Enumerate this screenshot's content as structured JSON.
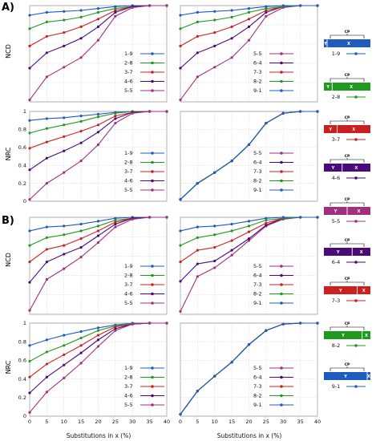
{
  "labels": {
    "panel_a": "A)",
    "panel_b": "B)",
    "ncd": "NCD",
    "nrc": "NRC",
    "xlabel": "Substitutions in x (%)",
    "cp": "CP",
    "x": "X",
    "y": "Y"
  },
  "colors": {
    "1-9": "#1f5bbf",
    "2-8": "#1f9a1f",
    "3-7": "#cc2020",
    "4-6": "#4a0a78",
    "5-5": "#a0307e",
    "6-4": "#4a0a78",
    "7-3": "#cc2020",
    "8-2": "#1f9a1f",
    "9-1": "#1f5bbf"
  },
  "legend_left": [
    "1-9",
    "2-8",
    "3-7",
    "4-6",
    "5-5"
  ],
  "legend_right": [
    "5-5",
    "6-4",
    "7-3",
    "8-2",
    "9-1"
  ],
  "chart_data": [
    {
      "type": "line",
      "panel": "A",
      "metric": "NCD",
      "position": "left",
      "x": [
        0,
        5,
        10,
        15,
        20,
        25,
        30,
        35,
        40
      ],
      "ylabel": "NCD",
      "ylim": [
        0,
        1
      ],
      "yticks": [],
      "series": [
        {
          "name": "1-9",
          "values": [
            0.9,
            0.93,
            0.94,
            0.95,
            0.97,
            0.99,
            1.0,
            1.0,
            1.0
          ]
        },
        {
          "name": "2-8",
          "values": [
            0.76,
            0.83,
            0.85,
            0.88,
            0.93,
            0.97,
            0.99,
            1.0,
            1.0
          ]
        },
        {
          "name": "3-7",
          "values": [
            0.58,
            0.68,
            0.72,
            0.78,
            0.86,
            0.95,
            0.99,
            1.0,
            1.0
          ]
        },
        {
          "name": "4-6",
          "values": [
            0.35,
            0.51,
            0.58,
            0.66,
            0.78,
            0.93,
            0.99,
            1.0,
            1.0
          ]
        },
        {
          "name": "5-5",
          "values": [
            0.02,
            0.26,
            0.36,
            0.46,
            0.64,
            0.89,
            0.98,
            1.0,
            1.0
          ]
        }
      ]
    },
    {
      "type": "line",
      "panel": "A",
      "metric": "NCD",
      "position": "right",
      "x": [
        0,
        5,
        10,
        15,
        20,
        25,
        30,
        35,
        40
      ],
      "ylim": [
        0,
        1
      ],
      "series": [
        {
          "name": "5-5",
          "values": [
            0.02,
            0.26,
            0.36,
            0.46,
            0.64,
            0.89,
            0.98,
            1.0,
            1.0
          ]
        },
        {
          "name": "6-4",
          "values": [
            0.35,
            0.51,
            0.58,
            0.66,
            0.78,
            0.93,
            0.99,
            1.0,
            1.0
          ]
        },
        {
          "name": "7-3",
          "values": [
            0.58,
            0.68,
            0.72,
            0.78,
            0.86,
            0.95,
            0.99,
            1.0,
            1.0
          ]
        },
        {
          "name": "8-2",
          "values": [
            0.76,
            0.83,
            0.85,
            0.88,
            0.93,
            0.97,
            0.99,
            1.0,
            1.0
          ]
        },
        {
          "name": "9-1",
          "values": [
            0.9,
            0.93,
            0.94,
            0.95,
            0.97,
            0.99,
            1.0,
            1.0,
            1.0
          ]
        }
      ]
    },
    {
      "type": "line",
      "panel": "A",
      "metric": "NRC",
      "position": "left",
      "x": [
        0,
        5,
        10,
        15,
        20,
        25,
        30,
        35,
        40
      ],
      "ylabel": "NRC",
      "ylim": [
        0,
        1
      ],
      "yticks": [
        0,
        0.2,
        0.4,
        0.6,
        0.8,
        1
      ],
      "series": [
        {
          "name": "1-9",
          "values": [
            0.9,
            0.92,
            0.93,
            0.95,
            0.97,
            0.99,
            1.0,
            1.0,
            1.0
          ]
        },
        {
          "name": "2-8",
          "values": [
            0.76,
            0.81,
            0.85,
            0.89,
            0.94,
            0.98,
            1.0,
            1.0,
            1.0
          ]
        },
        {
          "name": "3-7",
          "values": [
            0.59,
            0.66,
            0.72,
            0.78,
            0.85,
            0.95,
            0.99,
            1.0,
            1.0
          ]
        },
        {
          "name": "4-6",
          "values": [
            0.35,
            0.48,
            0.56,
            0.65,
            0.77,
            0.92,
            0.99,
            1.0,
            1.0
          ]
        },
        {
          "name": "5-5",
          "values": [
            0.02,
            0.2,
            0.32,
            0.45,
            0.63,
            0.87,
            0.98,
            1.0,
            1.0
          ]
        }
      ]
    },
    {
      "type": "line",
      "panel": "A",
      "metric": "NRC",
      "position": "right",
      "x": [
        0,
        5,
        10,
        15,
        20,
        25,
        30,
        35,
        40
      ],
      "ylim": [
        0,
        1
      ],
      "series": [
        {
          "name": "5-5",
          "values": [
            0.02,
            0.2,
            0.32,
            0.45,
            0.63,
            0.87,
            0.98,
            1.0,
            1.0
          ]
        },
        {
          "name": "6-4",
          "values": [
            0.02,
            0.2,
            0.32,
            0.45,
            0.63,
            0.87,
            0.98,
            1.0,
            1.0
          ]
        },
        {
          "name": "7-3",
          "values": [
            0.02,
            0.2,
            0.32,
            0.45,
            0.63,
            0.87,
            0.98,
            1.0,
            1.0
          ]
        },
        {
          "name": "8-2",
          "values": [
            0.02,
            0.2,
            0.32,
            0.45,
            0.63,
            0.87,
            0.98,
            1.0,
            1.0
          ]
        },
        {
          "name": "9-1",
          "values": [
            0.02,
            0.2,
            0.32,
            0.45,
            0.63,
            0.87,
            0.98,
            1.0,
            1.0
          ]
        }
      ]
    },
    {
      "type": "line",
      "panel": "B",
      "metric": "NCD",
      "position": "left",
      "x": [
        0,
        5,
        10,
        15,
        20,
        25,
        30,
        35,
        40
      ],
      "ylabel": "NCD",
      "ylim": [
        0,
        1
      ],
      "yticks": [],
      "series": [
        {
          "name": "1-9",
          "values": [
            0.86,
            0.9,
            0.91,
            0.93,
            0.96,
            0.99,
            1.0,
            1.0,
            1.0
          ]
        },
        {
          "name": "2-8",
          "values": [
            0.71,
            0.79,
            0.82,
            0.86,
            0.91,
            0.97,
            0.99,
            1.0,
            1.0
          ]
        },
        {
          "name": "3-7",
          "values": [
            0.54,
            0.67,
            0.71,
            0.78,
            0.86,
            0.95,
            0.99,
            1.0,
            1.0
          ]
        },
        {
          "name": "4-6",
          "values": [
            0.33,
            0.54,
            0.62,
            0.69,
            0.81,
            0.93,
            0.99,
            1.0,
            1.0
          ]
        },
        {
          "name": "5-5",
          "values": [
            0.04,
            0.36,
            0.47,
            0.59,
            0.74,
            0.9,
            0.98,
            1.0,
            1.0
          ]
        }
      ]
    },
    {
      "type": "line",
      "panel": "B",
      "metric": "NCD",
      "position": "right",
      "x": [
        0,
        5,
        10,
        15,
        20,
        25,
        30,
        35,
        40
      ],
      "ylim": [
        0,
        1
      ],
      "series": [
        {
          "name": "5-5",
          "values": [
            0.03,
            0.39,
            0.48,
            0.61,
            0.76,
            0.91,
            0.98,
            1.0,
            1.0
          ]
        },
        {
          "name": "6-4",
          "values": [
            0.34,
            0.52,
            0.55,
            0.66,
            0.78,
            0.92,
            0.99,
            1.0,
            1.0
          ]
        },
        {
          "name": "7-3",
          "values": [
            0.54,
            0.66,
            0.69,
            0.76,
            0.85,
            0.94,
            0.99,
            1.0,
            1.0
          ]
        },
        {
          "name": "8-2",
          "values": [
            0.71,
            0.79,
            0.82,
            0.86,
            0.91,
            0.97,
            0.99,
            1.0,
            1.0
          ]
        },
        {
          "name": "9-1",
          "values": [
            0.86,
            0.9,
            0.91,
            0.93,
            0.96,
            0.99,
            1.0,
            1.0,
            1.0
          ]
        }
      ]
    },
    {
      "type": "line",
      "panel": "B",
      "metric": "NRC",
      "position": "left",
      "x": [
        0,
        5,
        10,
        15,
        20,
        25,
        30,
        35,
        40
      ],
      "ylabel": "NRC",
      "ylim": [
        0,
        1
      ],
      "yticks": [
        0,
        0.2,
        0.4,
        0.6,
        0.8,
        1
      ],
      "series": [
        {
          "name": "1-9",
          "values": [
            0.76,
            0.82,
            0.87,
            0.91,
            0.95,
            0.98,
            1.0,
            1.0,
            1.0
          ]
        },
        {
          "name": "2-8",
          "values": [
            0.59,
            0.69,
            0.76,
            0.84,
            0.92,
            0.97,
            0.99,
            1.0,
            1.0
          ]
        },
        {
          "name": "3-7",
          "values": [
            0.42,
            0.56,
            0.66,
            0.76,
            0.87,
            0.96,
            0.99,
            1.0,
            1.0
          ]
        },
        {
          "name": "4-6",
          "values": [
            0.25,
            0.42,
            0.55,
            0.68,
            0.82,
            0.94,
            0.99,
            1.0,
            1.0
          ]
        },
        {
          "name": "5-5",
          "values": [
            0.04,
            0.26,
            0.41,
            0.57,
            0.75,
            0.92,
            0.99,
            1.0,
            1.0
          ]
        }
      ]
    },
    {
      "type": "line",
      "panel": "B",
      "metric": "NRC",
      "position": "right",
      "x": [
        0,
        5,
        10,
        15,
        20,
        25,
        30,
        35,
        40
      ],
      "ylim": [
        0,
        1
      ],
      "series": [
        {
          "name": "5-5",
          "values": [
            0.02,
            0.27,
            0.43,
            0.58,
            0.77,
            0.92,
            0.99,
            1.0,
            1.0
          ]
        },
        {
          "name": "6-4",
          "values": [
            0.02,
            0.27,
            0.43,
            0.58,
            0.77,
            0.92,
            0.99,
            1.0,
            1.0
          ]
        },
        {
          "name": "7-3",
          "values": [
            0.02,
            0.27,
            0.43,
            0.58,
            0.77,
            0.92,
            0.99,
            1.0,
            1.0
          ]
        },
        {
          "name": "8-2",
          "values": [
            0.02,
            0.27,
            0.43,
            0.58,
            0.77,
            0.92,
            0.99,
            1.0,
            1.0
          ]
        },
        {
          "name": "9-1",
          "values": [
            0.02,
            0.27,
            0.43,
            0.58,
            0.77,
            0.92,
            0.99,
            1.0,
            1.0
          ]
        }
      ]
    }
  ],
  "glyphs": [
    {
      "name": "1-9",
      "color": "#1f5bbf"
    },
    {
      "name": "2-8",
      "color": "#1f9a1f"
    },
    {
      "name": "3-7",
      "color": "#cc2020"
    },
    {
      "name": "4-6",
      "color": "#4a0a78"
    },
    {
      "name": "5-5",
      "color": "#a0307e"
    },
    {
      "name": "6-4",
      "color": "#4a0a78"
    },
    {
      "name": "7-3",
      "color": "#cc2020"
    },
    {
      "name": "8-2",
      "color": "#1f9a1f"
    },
    {
      "name": "9-1",
      "color": "#1f5bbf"
    }
  ],
  "x_tick_labels": [
    "0",
    "5",
    "10",
    "15",
    "20",
    "25",
    "30",
    "35",
    "40"
  ],
  "y_tick_labels": [
    "0",
    "0.2",
    "0.4",
    "0.6",
    "0.8",
    "1"
  ]
}
